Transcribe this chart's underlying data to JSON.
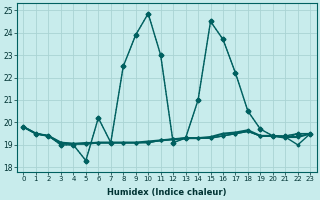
{
  "xlabel": "Humidex (Indice chaleur)",
  "xlim": [
    -0.5,
    23.5
  ],
  "ylim": [
    17.8,
    25.3
  ],
  "yticks": [
    18,
    19,
    20,
    21,
    22,
    23,
    24,
    25
  ],
  "xticks": [
    0,
    1,
    2,
    3,
    4,
    5,
    6,
    7,
    8,
    9,
    10,
    11,
    12,
    13,
    14,
    15,
    16,
    17,
    18,
    19,
    20,
    21,
    22,
    23
  ],
  "bg_color": "#c8ecec",
  "grid_color": "#aad4d4",
  "line_color": "#006060",
  "series": [
    {
      "y": [
        19.8,
        19.5,
        19.4,
        19.0,
        19.0,
        18.3,
        20.2,
        19.1,
        22.5,
        23.9,
        24.85,
        23.0,
        19.1,
        19.3,
        21.0,
        24.5,
        23.7,
        22.2,
        20.5,
        19.7,
        19.4,
        19.4,
        19.5,
        19.5
      ],
      "linestyle": "dotted",
      "linewidth": 0.8,
      "marker": "D",
      "markersize": 2.0,
      "zorder": 5
    },
    {
      "y": [
        19.8,
        19.5,
        19.4,
        19.0,
        19.0,
        18.3,
        20.2,
        19.1,
        22.5,
        23.9,
        24.85,
        23.0,
        19.1,
        19.3,
        21.0,
        24.5,
        23.7,
        22.2,
        20.5,
        19.7,
        19.4,
        19.4,
        19.5,
        19.5
      ],
      "linestyle": "solid",
      "linewidth": 1.0,
      "marker": "D",
      "markersize": 2.5,
      "zorder": 4
    },
    {
      "y": [
        19.8,
        19.5,
        19.4,
        19.1,
        19.05,
        19.05,
        19.1,
        19.1,
        19.1,
        19.1,
        19.15,
        19.2,
        19.25,
        19.3,
        19.3,
        19.35,
        19.5,
        19.55,
        19.65,
        19.4,
        19.4,
        19.35,
        19.35,
        19.5
      ],
      "linestyle": "solid",
      "linewidth": 1.5,
      "marker": "D",
      "markersize": 1.5,
      "zorder": 3
    },
    {
      "y": [
        19.8,
        19.5,
        19.4,
        19.1,
        19.05,
        19.05,
        19.1,
        19.1,
        19.1,
        19.1,
        19.1,
        19.2,
        19.25,
        19.3,
        19.3,
        19.3,
        19.4,
        19.5,
        19.6,
        19.4,
        19.4,
        19.35,
        19.0,
        19.5
      ],
      "linestyle": "solid",
      "linewidth": 1.0,
      "marker": "D",
      "markersize": 1.5,
      "zorder": 2
    },
    {
      "y": [
        19.8,
        19.5,
        19.4,
        19.05,
        19.05,
        19.1,
        19.1,
        19.1,
        19.1,
        19.1,
        19.1,
        19.2,
        19.25,
        19.3,
        19.3,
        19.3,
        19.4,
        19.5,
        19.6,
        19.4,
        19.4,
        19.3,
        19.5,
        19.5
      ],
      "linestyle": "solid",
      "linewidth": 1.0,
      "marker": "D",
      "markersize": 1.5,
      "zorder": 2
    }
  ]
}
